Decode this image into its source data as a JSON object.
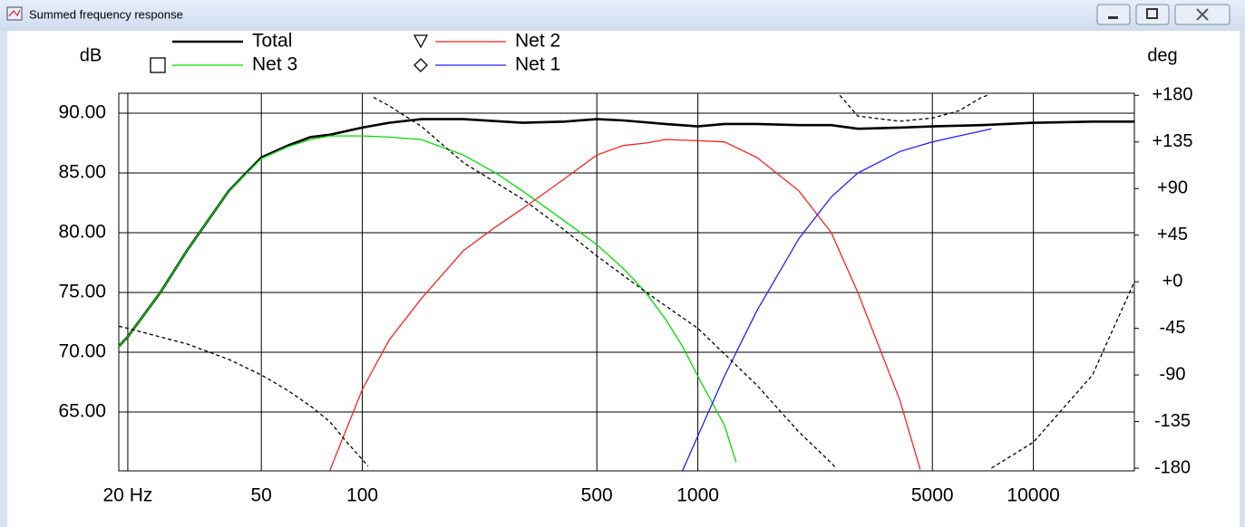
{
  "window_title": "Summed frequency response",
  "chart_data": {
    "type": "line",
    "y_label": "dB",
    "y2_label": "deg",
    "xlog": true,
    "grid": true,
    "xlim": [
      18.8,
      20000
    ],
    "xticks": [
      {
        "value": 20,
        "label": "20 Hz"
      },
      50,
      100,
      500,
      1000,
      5000,
      10000
    ],
    "ylim": [
      60.08,
      91.67
    ],
    "yticks": [
      {
        "value": 65,
        "label": "65.00"
      },
      {
        "value": 70,
        "label": "70.00"
      },
      {
        "value": 75,
        "label": "75.00"
      },
      {
        "value": 80,
        "label": "80.00"
      },
      {
        "value": 85,
        "label": "85.00"
      },
      {
        "value": 90,
        "label": "90.00"
      }
    ],
    "y2lim": [
      -182.6,
      182
    ],
    "y2ticks": [
      {
        "value": 180,
        "label": "+180"
      },
      {
        "value": 135,
        "label": "+135"
      },
      {
        "value": 90,
        "label": "+90"
      },
      {
        "value": 45,
        "label": "+45"
      },
      {
        "value": 0,
        "label": "+0"
      },
      -45,
      -90,
      -135,
      -180
    ],
    "series": [
      {
        "name": "Total",
        "color": "#000000",
        "legend": true,
        "x": [
          18.8,
          20,
          25,
          30,
          40,
          50,
          60,
          70,
          80,
          100,
          120,
          150,
          200,
          300,
          400,
          500,
          600,
          800,
          1000,
          1200,
          1500,
          2000,
          2500,
          3000,
          4000,
          5000,
          7000,
          10000,
          15000,
          20000
        ],
        "values": [
          70.5,
          71.3,
          75,
          78.5,
          83.5,
          86.3,
          87.3,
          88,
          88.2,
          88.8,
          89.2,
          89.5,
          89.5,
          89.2,
          89.3,
          89.5,
          89.4,
          89.1,
          88.9,
          89.1,
          89.1,
          89.0,
          89.0,
          88.7,
          88.8,
          88.9,
          89.0,
          89.2,
          89.3,
          89.3
        ]
      },
      {
        "name": "Net 3",
        "color": "#00dd00",
        "marker": "square",
        "legend": true,
        "x": [
          18.8,
          20,
          25,
          30,
          40,
          50,
          60,
          70,
          80,
          100,
          120,
          150,
          200,
          250,
          300,
          400,
          500,
          600,
          700,
          800,
          900,
          1000,
          1200,
          1300
        ],
        "values": [
          70.5,
          71.3,
          75,
          78.5,
          83.5,
          86.2,
          87.2,
          87.8,
          88.1,
          88.1,
          88.0,
          87.8,
          86.5,
          85.0,
          83.5,
          81.0,
          79.0,
          77.0,
          75.0,
          72.8,
          70.5,
          68,
          63.9,
          60.8
        ]
      },
      {
        "name": "Net 2",
        "color": "#ff2020",
        "marker": "triangle",
        "legend": true,
        "x": [
          80,
          100,
          120,
          150,
          200,
          250,
          300,
          400,
          500,
          600,
          700,
          800,
          1000,
          1200,
          1500,
          2000,
          2500,
          3000,
          4000,
          4600
        ],
        "values": [
          60.1,
          66.9,
          71,
          74.5,
          78.5,
          80.5,
          82,
          84.5,
          86.5,
          87.3,
          87.5,
          87.8,
          87.7,
          87.6,
          86.3,
          83.5,
          80,
          75,
          66,
          60.2
        ]
      },
      {
        "name": "Net 1",
        "color": "#2020ff",
        "marker": "diamond",
        "legend": true,
        "x": [
          900,
          1000,
          1200,
          1500,
          2000,
          2500,
          3000,
          4000,
          5000,
          6000,
          7000,
          7500
        ],
        "values": [
          60.1,
          63,
          68,
          73.5,
          79.5,
          83,
          85,
          86.8,
          87.6,
          88.1,
          88.5,
          88.7
        ]
      },
      {
        "color": "#000000",
        "axis": "y2",
        "dashed": true,
        "legend": false,
        "x": [
          18.8,
          20,
          30,
          40,
          50,
          60,
          70,
          80,
          90,
          104,
          105,
          108,
          120,
          150,
          200,
          300,
          400,
          500,
          700,
          1000,
          1500,
          2000,
          2500,
          2580,
          2600,
          2650,
          3000,
          4000,
          5000,
          6000,
          7000,
          7300,
          7400,
          7500,
          10000,
          15000,
          20000
        ],
        "values": [
          -43,
          -45,
          -60,
          -75,
          -90,
          -105,
          -120,
          -135,
          -155,
          -178,
          null,
          178,
          170,
          150,
          115,
          80,
          50,
          25,
          -10,
          -45,
          -100,
          -145,
          -175,
          -180,
          null,
          180,
          160,
          155,
          158,
          165,
          178,
          180,
          null,
          -180,
          -155,
          -90,
          0
        ]
      }
    ]
  }
}
